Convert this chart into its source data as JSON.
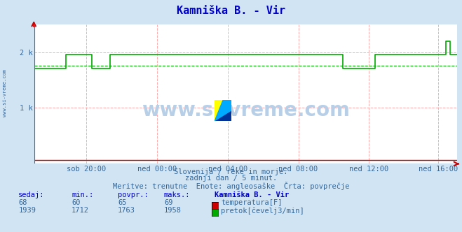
{
  "title": "Kamniška B. - Vir",
  "title_color": "#0000cc",
  "bg_color": "#d0e4f4",
  "plot_bg_color": "#ffffff",
  "x_tick_labels": [
    "sob 20:00",
    "ned 00:00",
    "ned 04:00",
    "ned 08:00",
    "ned 12:00",
    "ned 16:00"
  ],
  "x_tick_fractions": [
    0.125,
    0.292,
    0.458,
    0.625,
    0.792,
    0.958
  ],
  "y_tick_labels": [
    "2 k",
    "1 k"
  ],
  "y_tick_values": [
    2000,
    1000
  ],
  "ylim": [
    0,
    2500
  ],
  "temp_color": "#cc0000",
  "flow_color": "#00aa00",
  "avg_line_color": "#00aa00",
  "temp_value": 68,
  "temp_min": 60,
  "temp_max": 69,
  "temp_avg": 65,
  "flow_sedaj": 1939,
  "flow_min": 1712,
  "flow_avg": 1763,
  "flow_max": 1958,
  "subtitle1": "Slovenija / reke in morje.",
  "subtitle2": "zadnji dan / 5 minut.",
  "subtitle3": "Meritve: trenutne  Enote: angleosaške  Črta: povprečje",
  "legend_title": "Kamniška B. - Vir",
  "legend_label1": "temperatura[F]",
  "legend_label2": "pretok[čevelj3/min]",
  "watermark": "www.si-vreme.com",
  "left_label": "www.si-vreme.com",
  "n_points": 288
}
